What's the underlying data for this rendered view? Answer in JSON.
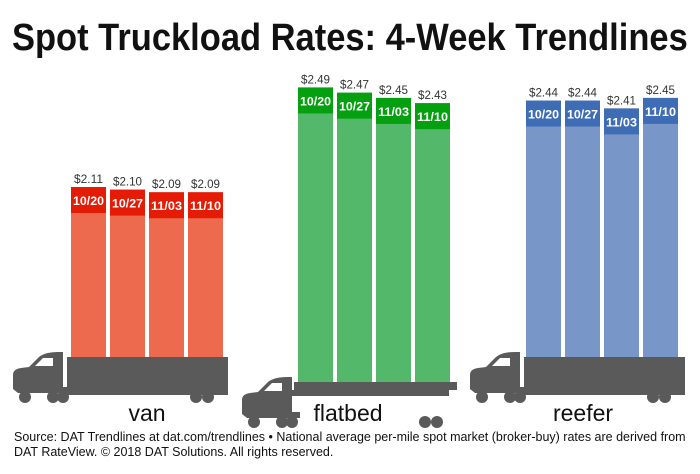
{
  "title": "Spot Truckload Rates: 4-Week Trendlines",
  "chart_data": {
    "type": "bar",
    "title": "Spot Truckload Rates: 4-Week Trendlines",
    "categories": [
      "10/20",
      "10/27",
      "11/03",
      "11/10"
    ],
    "groups": [
      {
        "name": "van",
        "values": [
          2.11,
          2.1,
          2.09,
          2.09
        ],
        "labels": [
          "$2.11",
          "$2.10",
          "$2.09",
          "$2.09"
        ],
        "bar_color": "#ed6a4f",
        "band_color": "#e41c06",
        "trailer": "box"
      },
      {
        "name": "flatbed",
        "values": [
          2.49,
          2.47,
          2.45,
          2.43
        ],
        "labels": [
          "$2.49",
          "$2.47",
          "$2.45",
          "$2.43"
        ],
        "bar_color": "#54b86b",
        "band_color": "#05a00f",
        "trailer": "flat"
      },
      {
        "name": "reefer",
        "values": [
          2.44,
          2.44,
          2.41,
          2.45
        ],
        "labels": [
          "$2.44",
          "$2.44",
          "$2.41",
          "$2.45"
        ],
        "bar_color": "#7896c8",
        "band_color": "#3f6db5",
        "trailer": "box"
      }
    ],
    "truck_color": "#5a5a5a",
    "grid": false,
    "legend": "none"
  },
  "footer": {
    "line1": "Source: DAT Trendlines at dat.com/trendlines • National average per-mile spot market (broker-buy) rates are derived from",
    "line2": "DAT RateView. © 2018 DAT Solutions. All rights reserved."
  }
}
